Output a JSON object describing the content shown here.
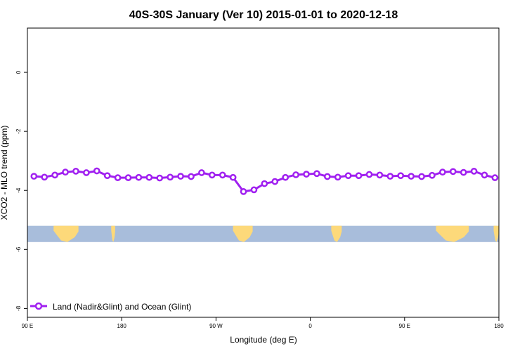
{
  "chart_data": {
    "type": "line",
    "title": "40S-30S January (Ver 10)   2015-01-01 to 2020-12-18",
    "xlabel": "Longitude (deg E)",
    "ylabel": "XCO2 - MLO trend (ppm)",
    "xlim": [
      90,
      450
    ],
    "ylim": [
      -8.3,
      1.5
    ],
    "x_ticks": [
      {
        "value": 90,
        "label": "90 E"
      },
      {
        "value": 162,
        "label": "180"
      },
      {
        "value": 234,
        "label": "90 W"
      },
      {
        "value": 306,
        "label": "0"
      },
      {
        "value": 378,
        "label": "90 E"
      },
      {
        "value": 450,
        "label": "180"
      }
    ],
    "y_ticks": [
      {
        "value": 0,
        "label": "0"
      },
      {
        "value": -2,
        "label": "-2"
      },
      {
        "value": -4,
        "label": "-4"
      },
      {
        "value": -6,
        "label": "-6"
      },
      {
        "value": -8,
        "label": "-8"
      }
    ],
    "grid": false,
    "legend_position": "bottom-left",
    "series": [
      {
        "name": "Land (Nadir&Glint) and Ocean (Glint)",
        "color": "#a020f0",
        "x": [
          95,
          103,
          111,
          119,
          127,
          135,
          143,
          151,
          159,
          167,
          175,
          183,
          191,
          199,
          207,
          215,
          223,
          231,
          239,
          247,
          255,
          263,
          271,
          279,
          287,
          295,
          303,
          311,
          319,
          327,
          335,
          343,
          351,
          359,
          367,
          375,
          383,
          391,
          399,
          407,
          415,
          423,
          431,
          439,
          447
        ],
        "y": [
          -3.52,
          -3.55,
          -3.48,
          -3.38,
          -3.35,
          -3.4,
          -3.34,
          -3.5,
          -3.57,
          -3.57,
          -3.56,
          -3.56,
          -3.58,
          -3.55,
          -3.52,
          -3.53,
          -3.4,
          -3.48,
          -3.48,
          -3.56,
          -4.04,
          -3.98,
          -3.77,
          -3.7,
          -3.56,
          -3.47,
          -3.45,
          -3.43,
          -3.53,
          -3.55,
          -3.5,
          -3.5,
          -3.46,
          -3.48,
          -3.52,
          -3.5,
          -3.52,
          -3.53,
          -3.49,
          -3.38,
          -3.36,
          -3.39,
          -3.35,
          -3.48,
          -3.57
        ]
      }
    ],
    "map_band": {
      "y_range": [
        -5.75,
        -5.2
      ],
      "ocean_color": "#a8bddb",
      "land_color": "#fdd97a",
      "land_segments": [
        [
          110,
          129
        ],
        [
          154,
          157
        ],
        [
          247,
          262
        ],
        [
          322,
          330
        ],
        [
          402,
          427
        ],
        [
          446,
          450
        ]
      ]
    }
  }
}
